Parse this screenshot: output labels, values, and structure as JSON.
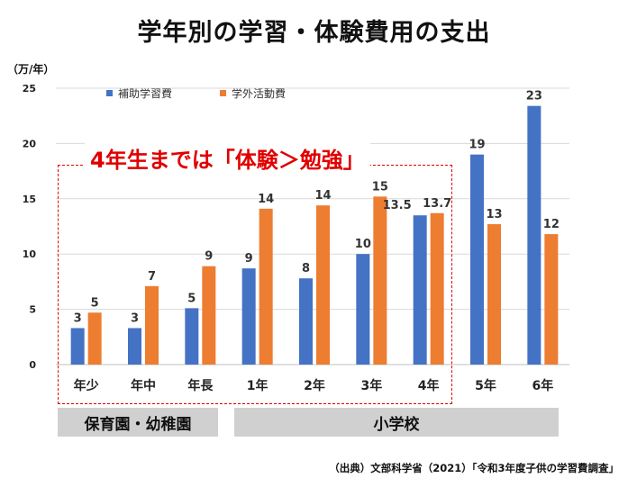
{
  "title": "学年別の学習・体験費用の支出",
  "unit_label": "（万/年）",
  "callout": "4年生までは「体験＞勉強」",
  "groups": [
    {
      "label": "保育園・幼稚園"
    },
    {
      "label": "小学校"
    }
  ],
  "source": "（出典）文部科学省（2021）「令和3年度子供の学習費調査」",
  "colors": {
    "study": "#4472c4",
    "activity": "#ed7d31",
    "callout": "#e00000",
    "group_bg": "#d0d0d0"
  },
  "chart_data": {
    "type": "bar",
    "title": "学年別の学習・体験費用の支出",
    "ylabel": "（万/年）",
    "ylim": [
      0,
      25
    ],
    "yticks": [
      0,
      5,
      10,
      15,
      20,
      25
    ],
    "grid": true,
    "legend_position": "top-left",
    "categories": [
      "年少",
      "年中",
      "年長",
      "1年",
      "2年",
      "3年",
      "4年",
      "5年",
      "6年"
    ],
    "series": [
      {
        "name": "補助学習費",
        "color": "#4472c4",
        "values": [
          3.3,
          3.3,
          5.1,
          8.7,
          7.8,
          10,
          13.5,
          19,
          23.4
        ],
        "labels": [
          "3",
          "3",
          "5",
          "9",
          "8",
          "10",
          "13.5",
          "19",
          "23"
        ]
      },
      {
        "name": "学外活動費",
        "color": "#ed7d31",
        "values": [
          4.7,
          7.1,
          8.9,
          14.1,
          14.4,
          15.2,
          13.7,
          12.7,
          11.8
        ],
        "labels": [
          "5",
          "7",
          "9",
          "14",
          "14",
          "15",
          "13.7",
          "13",
          "12"
        ]
      }
    ]
  }
}
